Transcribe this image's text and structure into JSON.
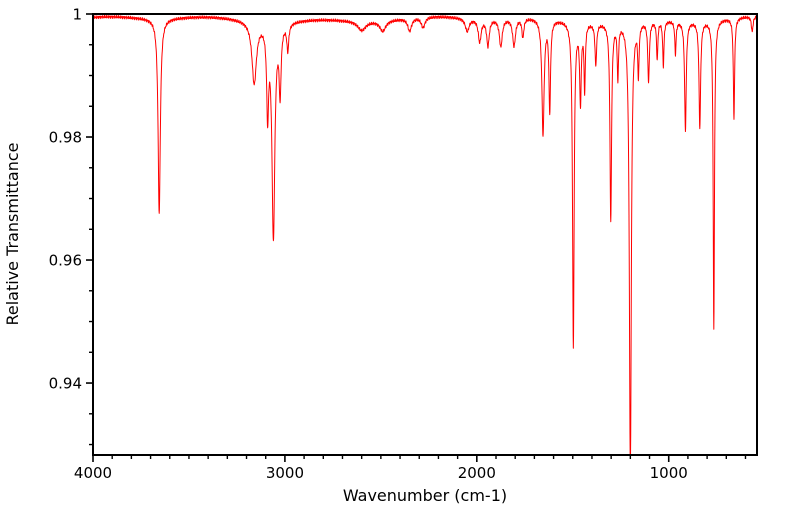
{
  "chart_data": {
    "type": "line",
    "title": "",
    "xlabel": "Wavenumber (cm-1)",
    "ylabel": "Relative Transmittance",
    "xlim": [
      4000,
      540
    ],
    "ylim": [
      0.9283,
      1.0
    ],
    "x_axis_reversed": true,
    "grid": false,
    "legend": "none",
    "x_ticks": [
      {
        "v": 4000,
        "label": "4000"
      },
      {
        "v": 3000,
        "label": "3000"
      },
      {
        "v": 2000,
        "label": "2000"
      },
      {
        "v": 1000,
        "label": "1000"
      }
    ],
    "y_ticks": [
      {
        "v": 1.0,
        "label": "1"
      },
      {
        "v": 0.98,
        "label": "0.98"
      },
      {
        "v": 0.96,
        "label": "0.96"
      },
      {
        "v": 0.94,
        "label": "0.94"
      }
    ],
    "x_minor_step": 100,
    "y_minor_step": 0.005,
    "line_color": "#ff0000",
    "axis_color": "#000000",
    "background": "#ffffff",
    "sample_step": 1,
    "baseline": {
      "level": 0.9992,
      "wave_amp1": 0.0003,
      "wave_period1": 260,
      "wave_amp2": 0.0002,
      "wave_period2": 90,
      "noise_amp": 0.00013
    },
    "peaks": [
      {
        "c": 3655,
        "d": 0.0318,
        "w": 7
      },
      {
        "c": 3160,
        "d": 0.01,
        "w": 14
      },
      {
        "c": 3090,
        "d": 0.014,
        "w": 6
      },
      {
        "c": 3060,
        "d": 0.0348,
        "w": 9
      },
      {
        "c": 3025,
        "d": 0.0108,
        "w": 6
      },
      {
        "c": 2985,
        "d": 0.0043,
        "w": 6
      },
      {
        "c": 2600,
        "d": 0.0015,
        "w": 25
      },
      {
        "c": 2490,
        "d": 0.0017,
        "w": 18
      },
      {
        "c": 2350,
        "d": 0.0021,
        "w": 12
      },
      {
        "c": 2280,
        "d": 0.0017,
        "w": 12
      },
      {
        "c": 2050,
        "d": 0.0021,
        "w": 12
      },
      {
        "c": 1985,
        "d": 0.0037,
        "w": 9
      },
      {
        "c": 1942,
        "d": 0.0043,
        "w": 8
      },
      {
        "c": 1875,
        "d": 0.0045,
        "w": 9
      },
      {
        "c": 1806,
        "d": 0.0045,
        "w": 9
      },
      {
        "c": 1760,
        "d": 0.0031,
        "w": 6
      },
      {
        "c": 1655,
        "d": 0.0188,
        "w": 7
      },
      {
        "c": 1620,
        "d": 0.0148,
        "w": 5
      },
      {
        "c": 1497,
        "d": 0.0528,
        "w": 5
      },
      {
        "c": 1460,
        "d": 0.0128,
        "w": 5
      },
      {
        "c": 1438,
        "d": 0.0108,
        "w": 4
      },
      {
        "c": 1380,
        "d": 0.0068,
        "w": 5
      },
      {
        "c": 1302,
        "d": 0.0323,
        "w": 5
      },
      {
        "c": 1265,
        "d": 0.0088,
        "w": 4
      },
      {
        "c": 1200,
        "d": 0.0743,
        "w": 6
      },
      {
        "c": 1158,
        "d": 0.0083,
        "w": 4
      },
      {
        "c": 1105,
        "d": 0.0098,
        "w": 5
      },
      {
        "c": 1060,
        "d": 0.0063,
        "w": 4
      },
      {
        "c": 1028,
        "d": 0.0073,
        "w": 4
      },
      {
        "c": 965,
        "d": 0.0053,
        "w": 4
      },
      {
        "c": 913,
        "d": 0.0178,
        "w": 5
      },
      {
        "c": 838,
        "d": 0.0173,
        "w": 5
      },
      {
        "c": 765,
        "d": 0.0503,
        "w": 4
      },
      {
        "c": 660,
        "d": 0.0163,
        "w": 4
      },
      {
        "c": 565,
        "d": 0.0025,
        "w": 5
      }
    ]
  }
}
